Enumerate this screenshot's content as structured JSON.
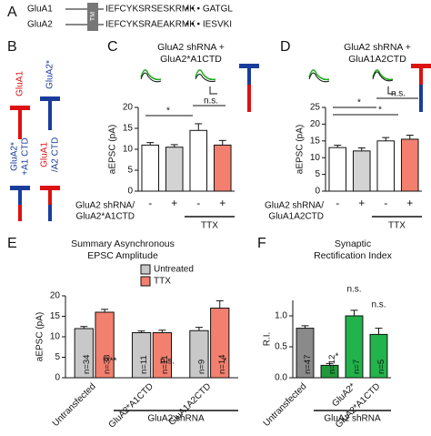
{
  "panel_a": {
    "letter": "A",
    "tm": "TM",
    "rows": [
      {
        "name": "GluA1",
        "sequence": "IEFCYKSRSESKRMK",
        "tail": "• • • GATGL"
      },
      {
        "name": "GluA2",
        "sequence": "IEFCYKSRAEAKRMK",
        "tail": "• • • IESVKI"
      }
    ]
  },
  "panel_b": {
    "letter": "B",
    "constructs": [
      [
        "GluA1"
      ],
      [
        "GluA2*"
      ],
      [
        "GluA2*",
        "+A1 CTD"
      ],
      [
        "GluA1",
        "/A2 CTD"
      ]
    ]
  },
  "chart_data": [
    {
      "type": "bar",
      "panel": "C",
      "title": [
        "GluA2 shRNA +",
        "GluA2*A1CTD"
      ],
      "ylabel": "aEPSC (pA)",
      "categories": [
        "-",
        "+",
        "-",
        "+"
      ],
      "values": [
        11,
        10.5,
        14.5,
        11
      ],
      "errors": [
        0.6,
        0.6,
        1.6,
        1.1
      ],
      "colors": [
        "#ffffff",
        "#d3d3d3",
        "#ffffff",
        "#f3806f"
      ],
      "ylim": [
        0,
        20
      ],
      "yticks": [
        0,
        5,
        10,
        15,
        20
      ],
      "row_label": [
        "GluA2 shRNA/",
        "GluA2*A1CTD"
      ],
      "bracket_label": "TTX",
      "annotations": [
        "*",
        "n.s."
      ]
    },
    {
      "type": "bar",
      "panel": "D",
      "title": [
        "GluA2 shRNA +",
        "GluA1A2CTD"
      ],
      "ylabel": "aEPSC (pA)",
      "categories": [
        "-",
        "+",
        "-",
        "+"
      ],
      "values": [
        13,
        12,
        15,
        15.5
      ],
      "errors": [
        0.7,
        0.9,
        1.0,
        1.2
      ],
      "colors": [
        "#ffffff",
        "#d3d3d3",
        "#ffffff",
        "#f3806f"
      ],
      "ylim": [
        0,
        25
      ],
      "yticks": [
        0,
        5,
        10,
        15,
        20,
        25
      ],
      "row_label": [
        "GluA2 shRNA/",
        "GluA1A2CTD"
      ],
      "bracket_label": "TTX",
      "annotations": [
        "*",
        "*",
        "n.s."
      ]
    },
    {
      "type": "bar",
      "panel": "E",
      "title": [
        "Summary Asynchronous",
        "EPSC Amplitude"
      ],
      "ylabel": "aEPSC (pA)",
      "categories": [
        "Untransfected",
        "GluA2*A1CTD",
        "GluA1A2CTD"
      ],
      "series": [
        {
          "name": "Untreated",
          "color": "#c8c8c8",
          "values": [
            12,
            11,
            11.5
          ],
          "errors": [
            0.5,
            0.4,
            0.8
          ],
          "n_labels": [
            "n=34",
            "n=11",
            "n=9"
          ]
        },
        {
          "name": "TTX",
          "color": "#f3806f",
          "values": [
            16,
            11,
            17
          ],
          "errors": [
            0.7,
            0.6,
            1.8
          ],
          "n_labels": [
            "n=38",
            "n=11",
            "n=14"
          ]
        }
      ],
      "ylim": [
        0,
        20
      ],
      "yticks": [
        0,
        5,
        10,
        15,
        20
      ],
      "group_label": "GluA2 shRNA",
      "annotations": [
        "****",
        "n.s.",
        "*"
      ]
    },
    {
      "type": "bar",
      "panel": "F",
      "title": [
        "Synaptic",
        "Rectification Index"
      ],
      "ylabel": "R.I.",
      "categories": [
        "Untransfected",
        null,
        "GluA2*",
        "GluA2*A1CTD"
      ],
      "values": [
        0.8,
        0.2,
        1.0,
        0.7
      ],
      "errors": [
        0.04,
        0.03,
        0.09,
        0.1
      ],
      "colors": [
        "#8a8a8a",
        "#1f9a3a",
        "#22b34a",
        "#22b34a"
      ],
      "n_labels": [
        "n=47",
        "n=12",
        "n=7",
        "n=5"
      ],
      "ylim": [
        0,
        1.25
      ],
      "yticks": [
        {
          "value": 0,
          "label": "0.0"
        },
        {
          "value": 0.5,
          "label": "0.5"
        },
        {
          "value": 1,
          "label": "1.0"
        }
      ],
      "group_label": "GluA2 shRNA",
      "annotations": [
        "*",
        "n.s.",
        "n.s."
      ]
    }
  ]
}
